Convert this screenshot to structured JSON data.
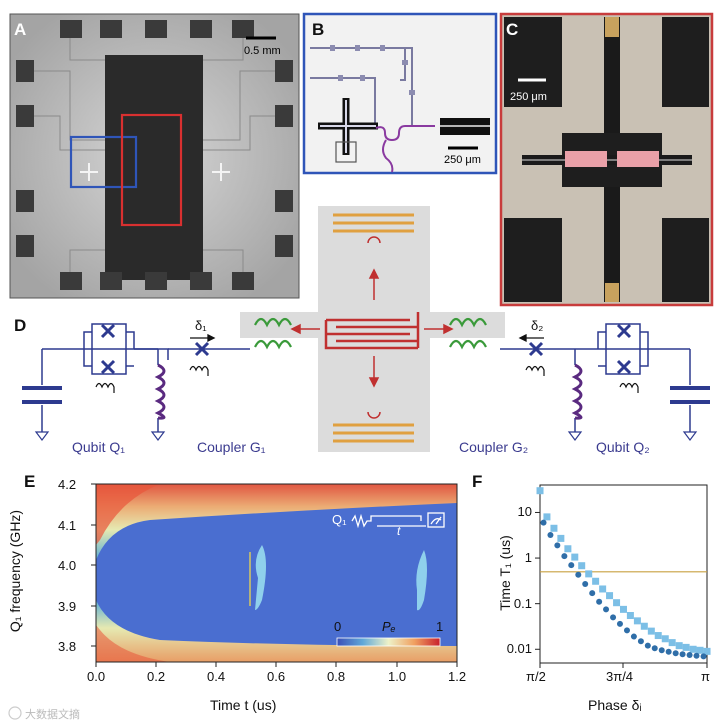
{
  "panels": {
    "a": {
      "letter": "A",
      "scale_label": "0.5 mm"
    },
    "b": {
      "letter": "B",
      "scale_label": "250 μm"
    },
    "c": {
      "letter": "C",
      "scale_label": "250 μm"
    },
    "d": {
      "letter": "D",
      "labels": {
        "qubit_q1": "Qubit Q₁",
        "coupler_g1": "Coupler G₁",
        "coupler_g2": "Coupler G₂",
        "qubit_q2": "Qubit Q₂",
        "delta1": "δ₁",
        "delta2": "δ₂"
      }
    },
    "e": {
      "letter": "E",
      "ylabel": "Q₁ frequency (GHz)",
      "xlabel": "Time t (us)",
      "colorbar_label": "Pₑ",
      "colorbar_min": "0",
      "colorbar_max": "1",
      "inset_q": "Q₁",
      "inset_t": "t"
    },
    "f": {
      "letter": "F",
      "ylabel": "Time T₁ (us)",
      "xlabel": "Phase δᵢ"
    }
  },
  "watermark": "大数据文摘",
  "chart_data": [
    {
      "type": "heatmap",
      "title": "",
      "xlabel": "Time t (us)",
      "ylabel": "Q₁ frequency (GHz)",
      "xlim": [
        0.0,
        1.2
      ],
      "ylim": [
        3.75,
        4.2
      ],
      "x_ticks": [
        "0.0",
        "0.2",
        "0.4",
        "0.6",
        "0.8",
        "1.0",
        "1.2"
      ],
      "y_ticks": [
        "4.2",
        "4.1",
        "4.0",
        "3.9",
        "3.8"
      ],
      "colorbar": {
        "label": "Pₑ",
        "min": 0,
        "max": 1
      },
      "features": [
        {
          "name": "revival-1",
          "t": 0.53,
          "freq_center": 3.96
        },
        {
          "name": "revival-2",
          "t": 1.07,
          "freq_center": 3.96
        }
      ]
    },
    {
      "type": "scatter",
      "xlabel": "Phase δᵢ",
      "ylabel": "Time T₁ (us)",
      "yscale": "log",
      "ylim": [
        0.005,
        40
      ],
      "x_ticks": [
        "π/2",
        "3π/4",
        "π"
      ],
      "y_ticks": [
        "10",
        "1",
        "0.1",
        "0.01"
      ],
      "reference_line": 0.5,
      "series": [
        {
          "name": "squares",
          "x": [
            1.571,
            1.636,
            1.702,
            1.767,
            1.833,
            1.898,
            1.963,
            2.029,
            2.094,
            2.16,
            2.225,
            2.291,
            2.356,
            2.421,
            2.487,
            2.552,
            2.618,
            2.683,
            2.749,
            2.814,
            2.88,
            2.945,
            3.011,
            3.076,
            3.142
          ],
          "values": [
            30,
            8,
            4.5,
            2.7,
            1.6,
            1.05,
            0.68,
            0.45,
            0.31,
            0.21,
            0.15,
            0.105,
            0.075,
            0.055,
            0.042,
            0.032,
            0.025,
            0.02,
            0.017,
            0.014,
            0.012,
            0.011,
            0.01,
            0.0095,
            0.009
          ]
        },
        {
          "name": "circles",
          "x": [
            1.604,
            1.669,
            1.734,
            1.8,
            1.865,
            1.931,
            1.996,
            2.062,
            2.127,
            2.192,
            2.258,
            2.323,
            2.389,
            2.454,
            2.52,
            2.585,
            2.65,
            2.716,
            2.781,
            2.847,
            2.912,
            2.978,
            3.043,
            3.109
          ],
          "values": [
            6,
            3.2,
            1.9,
            1.1,
            0.7,
            0.43,
            0.27,
            0.17,
            0.11,
            0.075,
            0.05,
            0.036,
            0.026,
            0.019,
            0.015,
            0.012,
            0.0105,
            0.0095,
            0.0088,
            0.0082,
            0.0078,
            0.0075,
            0.0072,
            0.007
          ]
        }
      ]
    }
  ]
}
